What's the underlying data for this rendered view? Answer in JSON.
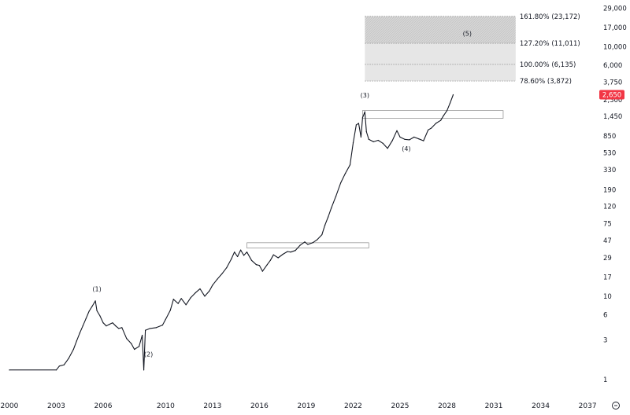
{
  "chart_data": {
    "type": "line",
    "title": "",
    "xlabel": "",
    "ylabel": "",
    "y_scale": "log",
    "ylim": [
      0.75,
      32000
    ],
    "xlim": [
      1999.6,
      2037.6
    ],
    "grid": false,
    "x_ticks": [
      "2000",
      "2003",
      "2006",
      "2010",
      "2013",
      "2016",
      "2019",
      "2022",
      "2025",
      "2028",
      "2031",
      "2034",
      "2037"
    ],
    "y_ticks": [
      "29,000",
      "17,000",
      "10,000",
      "6,000",
      "3,750",
      "2,300",
      "1,450",
      "850",
      "530",
      "330",
      "190",
      "120",
      "75",
      "47",
      "29",
      "17",
      "10",
      "6",
      "3",
      "1"
    ],
    "last_price": {
      "value": 2650,
      "label": "2,650",
      "color": "#f23645"
    },
    "series": [
      {
        "color": "#131722",
        "points": [
          [
            2000.0,
            1.3
          ],
          [
            2003.0,
            1.3
          ],
          [
            2003.2,
            1.45
          ],
          [
            2003.5,
            1.5
          ],
          [
            2003.8,
            1.8
          ],
          [
            2004.1,
            2.3
          ],
          [
            2004.3,
            2.9
          ],
          [
            2004.5,
            3.6
          ],
          [
            2004.7,
            4.4
          ],
          [
            2004.9,
            5.4
          ],
          [
            2005.1,
            6.6
          ],
          [
            2005.3,
            7.6
          ],
          [
            2005.5,
            8.8
          ],
          [
            2005.6,
            6.7
          ],
          [
            2005.8,
            5.8
          ],
          [
            2006.0,
            4.8
          ],
          [
            2006.2,
            4.4
          ],
          [
            2006.4,
            4.6
          ],
          [
            2006.6,
            4.8
          ],
          [
            2006.8,
            4.4
          ],
          [
            2007.0,
            4.1
          ],
          [
            2007.2,
            4.2
          ],
          [
            2007.5,
            3.1
          ],
          [
            2007.8,
            2.7
          ],
          [
            2008.0,
            2.3
          ],
          [
            2008.3,
            2.5
          ],
          [
            2008.5,
            3.4
          ],
          [
            2008.6,
            1.3
          ],
          [
            2008.7,
            3.9
          ],
          [
            2009.0,
            4.1
          ],
          [
            2009.4,
            4.2
          ],
          [
            2009.8,
            4.5
          ],
          [
            2010.0,
            5.3
          ],
          [
            2010.3,
            6.8
          ],
          [
            2010.5,
            9.2
          ],
          [
            2010.8,
            8.2
          ],
          [
            2011.0,
            9.4
          ],
          [
            2011.3,
            7.9
          ],
          [
            2011.6,
            9.6
          ],
          [
            2011.9,
            11.0
          ],
          [
            2012.2,
            12.3
          ],
          [
            2012.5,
            10.0
          ],
          [
            2012.8,
            11.6
          ],
          [
            2013.0,
            13.6
          ],
          [
            2013.3,
            16.0
          ],
          [
            2013.6,
            18.6
          ],
          [
            2013.9,
            22.0
          ],
          [
            2014.2,
            28.0
          ],
          [
            2014.4,
            34.0
          ],
          [
            2014.6,
            30.0
          ],
          [
            2014.8,
            36.0
          ],
          [
            2015.0,
            31.0
          ],
          [
            2015.2,
            34.0
          ],
          [
            2015.5,
            27.0
          ],
          [
            2015.8,
            24.0
          ],
          [
            2016.0,
            23.5
          ],
          [
            2016.2,
            20.0
          ],
          [
            2016.5,
            24.0
          ],
          [
            2016.7,
            27.0
          ],
          [
            2016.9,
            31.5
          ],
          [
            2017.2,
            29.0
          ],
          [
            2017.5,
            32.0
          ],
          [
            2017.8,
            34.5
          ],
          [
            2018.0,
            34.0
          ],
          [
            2018.3,
            35.5
          ],
          [
            2018.6,
            41.0
          ],
          [
            2018.9,
            45.0
          ],
          [
            2019.1,
            42.0
          ],
          [
            2019.4,
            44.0
          ],
          [
            2019.7,
            48.0
          ],
          [
            2020.0,
            55.0
          ],
          [
            2020.2,
            72.0
          ],
          [
            2020.4,
            90.0
          ],
          [
            2020.6,
            115.0
          ],
          [
            2020.9,
            160.0
          ],
          [
            2021.2,
            230.0
          ],
          [
            2021.5,
            300.0
          ],
          [
            2021.8,
            380.0
          ],
          [
            2022.0,
            700.0
          ],
          [
            2022.2,
            1150.0
          ],
          [
            2022.35,
            1200.0
          ],
          [
            2022.5,
            820.0
          ],
          [
            2022.6,
            1400.0
          ],
          [
            2022.75,
            1650.0
          ],
          [
            2022.85,
            950.0
          ],
          [
            2023.0,
            770.0
          ],
          [
            2023.3,
            720.0
          ],
          [
            2023.6,
            750.0
          ],
          [
            2023.9,
            690.0
          ],
          [
            2024.2,
            600.0
          ],
          [
            2024.5,
            740.0
          ],
          [
            2024.8,
            980.0
          ],
          [
            2025.0,
            820.0
          ],
          [
            2025.3,
            770.0
          ],
          [
            2025.6,
            760.0
          ],
          [
            2025.9,
            820.0
          ],
          [
            2026.2,
            780.0
          ],
          [
            2026.5,
            740.0
          ],
          [
            2026.8,
            1000.0
          ],
          [
            2027.0,
            1050.0
          ],
          [
            2027.3,
            1200.0
          ],
          [
            2027.6,
            1300.0
          ],
          [
            2027.8,
            1500.0
          ],
          [
            2028.0,
            1700.0
          ],
          [
            2028.2,
            2100.0
          ],
          [
            2028.4,
            2650.0
          ]
        ]
      }
    ],
    "wave_labels": [
      {
        "text": "(1)",
        "x": 2005.6,
        "y": 11.5
      },
      {
        "text": "(2)",
        "x": 2008.9,
        "y": 1.9
      },
      {
        "text": "(3)",
        "x": 2022.75,
        "y": 2450
      },
      {
        "text": "(4)",
        "x": 2025.4,
        "y": 560
      },
      {
        "text": "(5)",
        "x": 2029.3,
        "y": 13500
      }
    ],
    "zones": [
      {
        "x0": 2015.2,
        "x1": 2023.0,
        "y0": 38,
        "y1": 44
      },
      {
        "x0": 2022.6,
        "x1": 2031.6,
        "y0": 1380,
        "y1": 1710
      }
    ],
    "fib_levels": [
      {
        "label": "161.80% (23,172)",
        "value": 23172
      },
      {
        "label": "127.20% (11,011)",
        "value": 11011
      },
      {
        "label": "100.00% (6,135)",
        "value": 6135
      },
      {
        "label": "78.60% (3,872)",
        "value": 3872
      }
    ],
    "fib_box": {
      "x0": 2022.75,
      "x1": 2032.4
    },
    "zoom_icon": "zoom-icon"
  }
}
